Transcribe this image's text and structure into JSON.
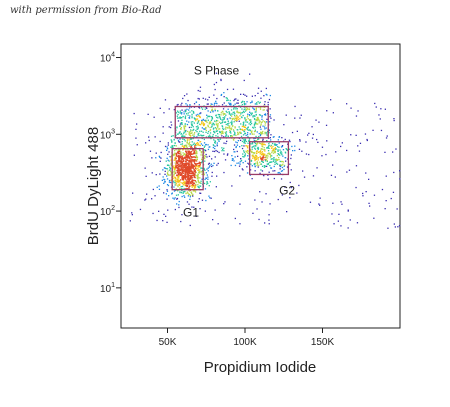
{
  "credit": "with permission from Bio-Rad",
  "chart_data": {
    "type": "scatter",
    "subtype": "flow-cytometry density dot plot",
    "xlabel": "Propidium Iodide",
    "ylabel": "BrdU DyLight 488",
    "xlim": [
      20000,
      200000
    ],
    "ylim": [
      3,
      15000
    ],
    "yscale": "log",
    "x_ticks": [
      {
        "value": 50000,
        "label": "50K"
      },
      {
        "value": 100000,
        "label": "100K"
      },
      {
        "value": 150000,
        "label": "150K"
      }
    ],
    "y_ticks": [
      {
        "value": 10,
        "base": "10",
        "exp": "1"
      },
      {
        "value": 100,
        "base": "10",
        "exp": "2"
      },
      {
        "value": 1000,
        "base": "10",
        "exp": "3"
      },
      {
        "value": 10000,
        "base": "10",
        "exp": "4"
      }
    ],
    "gates": [
      {
        "name": "S Phase",
        "x": [
          55000,
          115000
        ],
        "y": [
          900,
          2300
        ],
        "label_at": {
          "x": 67000,
          "y": 6000
        }
      },
      {
        "name": "G1",
        "x": [
          53000,
          73000
        ],
        "y": [
          190,
          650
        ],
        "label_at": {
          "x": 60000,
          "y": 85
        }
      },
      {
        "name": "G2",
        "x": [
          103000,
          128000
        ],
        "y": [
          300,
          800
        ],
        "label_at": {
          "x": 122000,
          "y": 165
        }
      }
    ],
    "populations": [
      {
        "name": "G1",
        "center": [
          62000,
          360
        ],
        "spread": [
          6500,
          0.17
        ],
        "count": 1100
      },
      {
        "name": "G2",
        "center": [
          112000,
          560
        ],
        "spread": [
          9000,
          0.13
        ],
        "count": 380
      },
      {
        "name": "S Phase",
        "x_range": [
          55000,
          115000
        ],
        "y_center": 1400,
        "y_spread": 0.2,
        "count": 950
      },
      {
        "name": "sparse",
        "x_range": [
          25000,
          200000
        ],
        "y_range": [
          60,
          3000
        ],
        "count": 260
      }
    ],
    "colors": {
      "gate": "#9a3c68",
      "sparse": "#3a2db0",
      "density": [
        "#3a2db0",
        "#1e88e5",
        "#26c6a0",
        "#b7d94a",
        "#f5c518",
        "#e04a2a"
      ]
    }
  }
}
